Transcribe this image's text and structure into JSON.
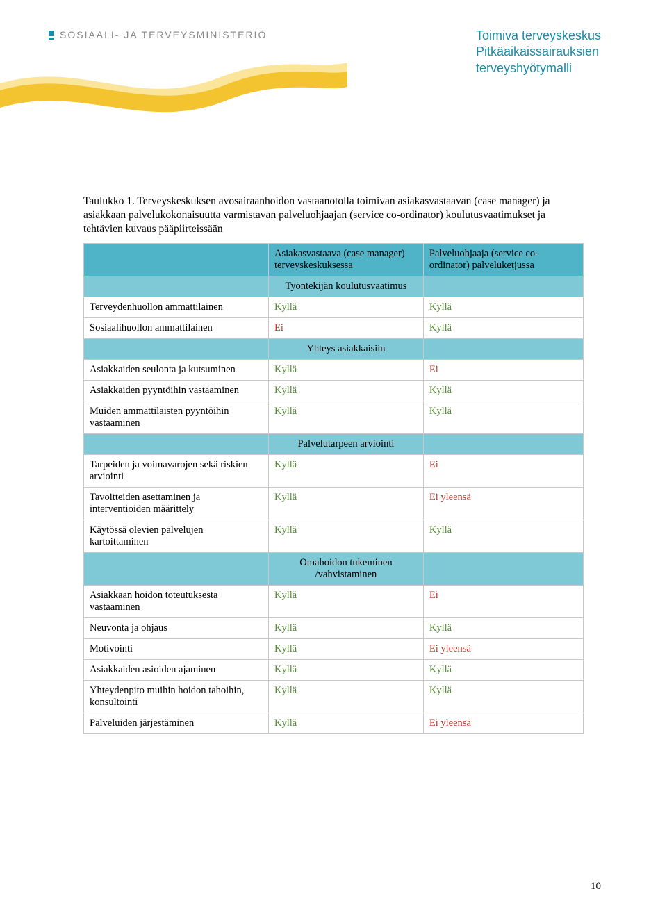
{
  "logo_text": "SOSIAALI- JA TERVEYSMINISTERIÖ",
  "header_title_lines": [
    "Toimiva terveyskeskus",
    "Pitkäaikaissairauksien",
    "terveyshyötymalli"
  ],
  "caption": "Taulukko 1. Terveyskeskuksen avosairaanhoidon vastaanotolla toimivan asiakasvastaavan (case manager) ja asiakkaan palvelukokonaisuutta varmistavan palveluohjaajan (service co-ordinator) koulutusvaatimukset ja tehtävien kuvaus pääpiirteissään",
  "columns": {
    "col2": "Asiakasvastaava (case manager) terveyskeskuksessa",
    "col3": "Palveluohjaaja (service co-ordinator) palveluketjussa"
  },
  "labels": {
    "yes": "Kyllä",
    "no": "Ei",
    "no_usually": "Ei yleensä"
  },
  "sections": [
    {
      "title": "Työntekijän koulutusvaatimus",
      "rows": [
        {
          "label": "Terveydenhuollon ammattilainen",
          "c2": "yes",
          "c3": "yes"
        },
        {
          "label": "Sosiaalihuollon ammattilainen",
          "c2": "no",
          "c3": "yes"
        }
      ]
    },
    {
      "title": "Yhteys asiakkaisiin",
      "rows": [
        {
          "label": "Asiakkaiden seulonta ja kutsuminen",
          "c2": "yes",
          "c3": "no"
        },
        {
          "label": "Asiakkaiden pyyntöihin vastaaminen",
          "c2": "yes",
          "c3": "yes"
        },
        {
          "label": "Muiden ammattilaisten pyyntöihin vastaaminen",
          "c2": "yes",
          "c3": "yes"
        }
      ]
    },
    {
      "title": "Palvelutarpeen arviointi",
      "rows": [
        {
          "label": "Tarpeiden ja voimavarojen sekä riskien arviointi",
          "c2": "yes",
          "c3": "no"
        },
        {
          "label": "Tavoitteiden asettaminen ja interventioiden määrittely",
          "c2": "yes",
          "c3": "no_usually"
        },
        {
          "label": "Käytössä olevien palvelujen kartoittaminen",
          "c2": "yes",
          "c3": "yes"
        }
      ]
    },
    {
      "title": "Omahoidon tukeminen /vahvistaminen",
      "rows": [
        {
          "label": "Asiakkaan hoidon toteutuksesta vastaaminen",
          "c2": "yes",
          "c3": "no"
        },
        {
          "label": "Neuvonta ja ohjaus",
          "c2": "yes",
          "c3": "yes"
        },
        {
          "label": "Motivointi",
          "c2": "yes",
          "c3": "no_usually"
        },
        {
          "label": "Asiakkaiden asioiden ajaminen",
          "c2": "yes",
          "c3": "yes"
        },
        {
          "label": "Yhteydenpito muihin hoidon tahoihin, konsultointi",
          "c2": "yes",
          "c3": "yes"
        },
        {
          "label": "Palveluiden järjestäminen",
          "c2": "yes",
          "c3": "no_usually"
        }
      ]
    }
  ],
  "page_number": "10",
  "colors": {
    "brand_teal": "#1e8ba8",
    "header_bg": "#4fb4c8",
    "section_bg": "#7fc8d6",
    "border": "#c8c8c8",
    "yes": "#5a8f3a",
    "no": "#c0392b",
    "wave_yellow": "#f4c430",
    "wave_light_yellow": "#f9e08a"
  }
}
